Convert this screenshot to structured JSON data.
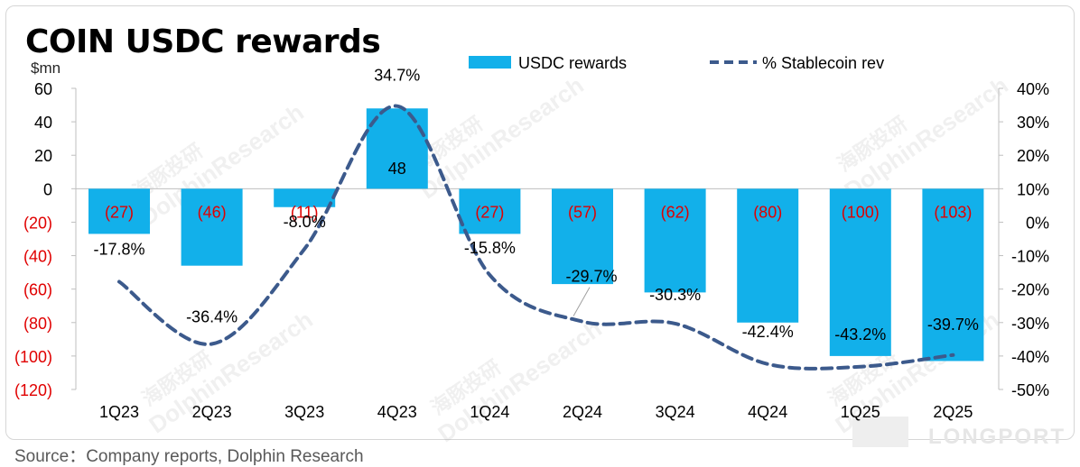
{
  "title": "COIN USDC rewards",
  "unit_label": "$mn",
  "source": "Source：Company reports, Dolphin Research",
  "watermark": {
    "text_cn": "海豚投研",
    "text_en": "DolphinResearch",
    "logo_text": "LONGPORT"
  },
  "colors": {
    "bar": "#12b0ea",
    "line": "#3c5a8c",
    "negative_axis": "#e00000",
    "text": "#000000"
  },
  "chart_data": {
    "type": "bar+line",
    "categories": [
      "1Q23",
      "2Q23",
      "3Q23",
      "4Q23",
      "1Q24",
      "2Q24",
      "3Q24",
      "4Q24",
      "1Q25",
      "2Q25"
    ],
    "series": [
      {
        "name": "USDC rewards",
        "type": "bar",
        "axis": "left",
        "values": [
          -27,
          -46,
          -11,
          48,
          -27,
          -57,
          -62,
          -80,
          -100,
          -103
        ],
        "labels": [
          "(27)",
          "(46)",
          "(11)",
          "48",
          "(27)",
          "(57)",
          "(62)",
          "(80)",
          "(100)",
          "(103)"
        ]
      },
      {
        "name": "% Stablecoin rev",
        "type": "line",
        "style": "dashed",
        "axis": "right",
        "values": [
          -17.8,
          -36.4,
          -8.0,
          34.7,
          -15.8,
          -29.7,
          -30.3,
          -42.4,
          -43.2,
          -39.7
        ],
        "labels": [
          "-17.8%",
          "-36.4%",
          "-8.0%",
          "34.7%",
          "-15.8%",
          "-29.7%",
          "-30.3%",
          "-42.4%",
          "-43.2%",
          "-39.7%"
        ]
      }
    ],
    "left_axis": {
      "ylim": [
        -120,
        60
      ],
      "ticks": [
        60,
        40,
        20,
        0,
        -20,
        -40,
        -60,
        -80,
        -100,
        -120
      ],
      "tick_labels": [
        "60",
        "40",
        "20",
        "0",
        "(20)",
        "(40)",
        "(60)",
        "(80)",
        "(100)",
        "(120)"
      ]
    },
    "right_axis": {
      "ylim": [
        -50,
        40
      ],
      "ticks": [
        40,
        30,
        20,
        10,
        0,
        -10,
        -20,
        -30,
        -40,
        -50
      ],
      "tick_labels": [
        "40%",
        "30%",
        "20%",
        "10%",
        "0%",
        "-10%",
        "-20%",
        "-30%",
        "-40%",
        "-50%"
      ]
    },
    "legend": {
      "placement": "top-center"
    },
    "grid": false
  }
}
